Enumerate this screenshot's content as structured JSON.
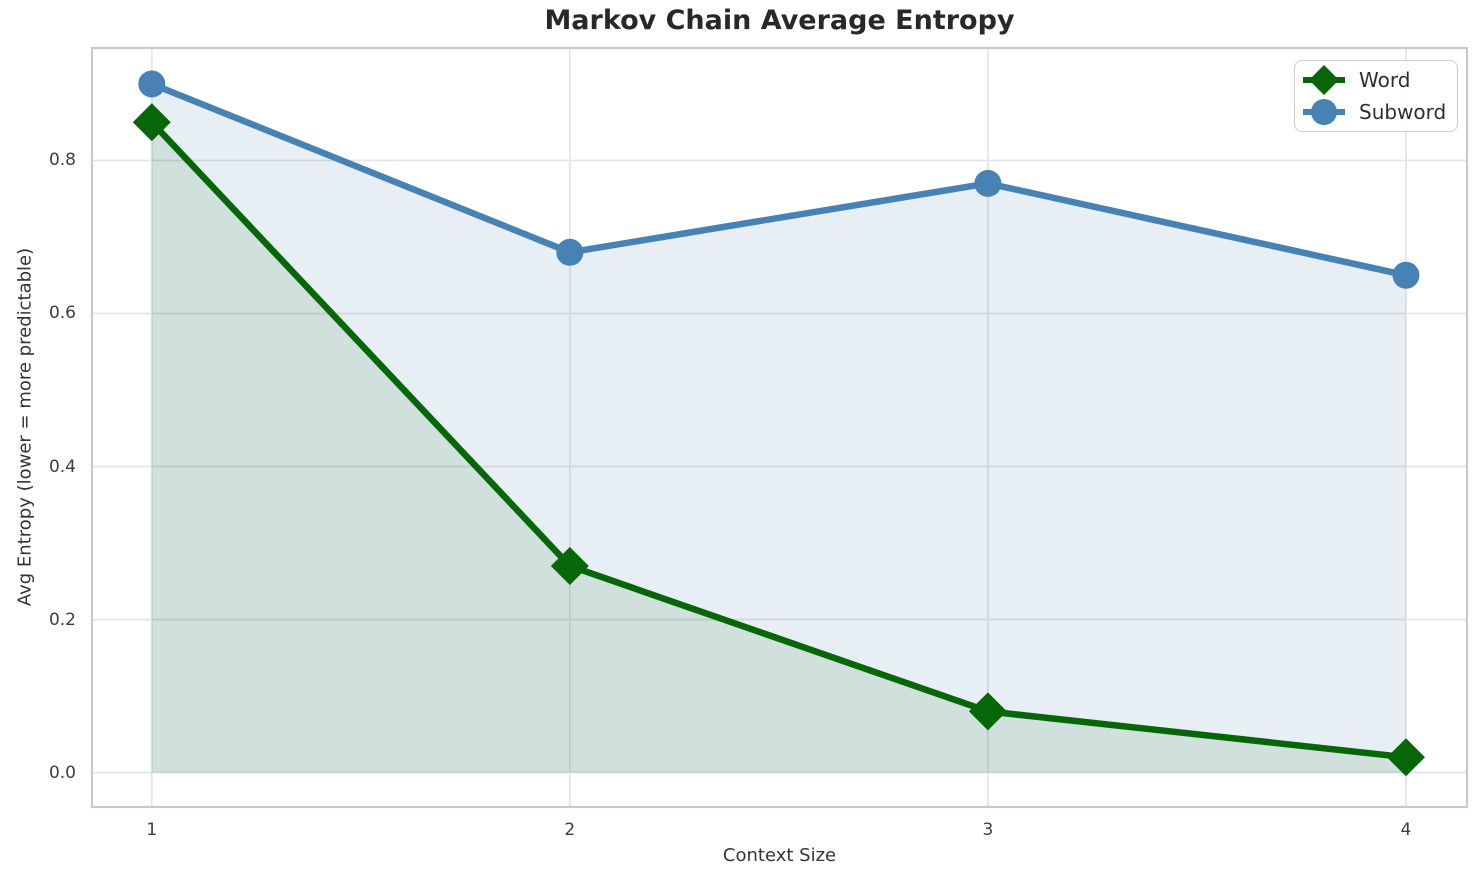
{
  "figure": {
    "title": "Markov Chain Average Entropy",
    "xlabel": "Context Size",
    "ylabel": "Avg Entropy (lower = more predictable)"
  },
  "legend": {
    "position": "upper right",
    "items": [
      {
        "label": "Word",
        "marker": "diamond",
        "color": "#076607"
      },
      {
        "label": "Subword",
        "marker": "circle",
        "color": "#4682b4"
      }
    ]
  },
  "chart_data": {
    "type": "line",
    "title": "Markov Chain Average Entropy",
    "xlabel": "Context Size",
    "ylabel": "Avg Entropy (lower = more predictable)",
    "x": [
      1,
      2,
      3,
      4
    ],
    "series": [
      {
        "name": "Word",
        "values": [
          0.85,
          0.27,
          0.08,
          0.02
        ],
        "color": "#076607",
        "marker": "diamond",
        "area_fill": true,
        "fill_opacity": 0.1
      },
      {
        "name": "Subword",
        "values": [
          0.9,
          0.68,
          0.77,
          0.65
        ],
        "color": "#4682b4",
        "marker": "circle",
        "area_fill": true,
        "fill_opacity": 0.13
      }
    ],
    "xticks": [
      "1",
      "2",
      "3",
      "4"
    ],
    "yticks": [
      "0.0",
      "0.2",
      "0.4",
      "0.6",
      "0.8"
    ],
    "xlim": [
      0.857,
      4.146
    ],
    "ylim": [
      -0.045,
      0.947
    ],
    "fill_baseline": 0.0,
    "grid": true,
    "legend_position": "upper right"
  }
}
